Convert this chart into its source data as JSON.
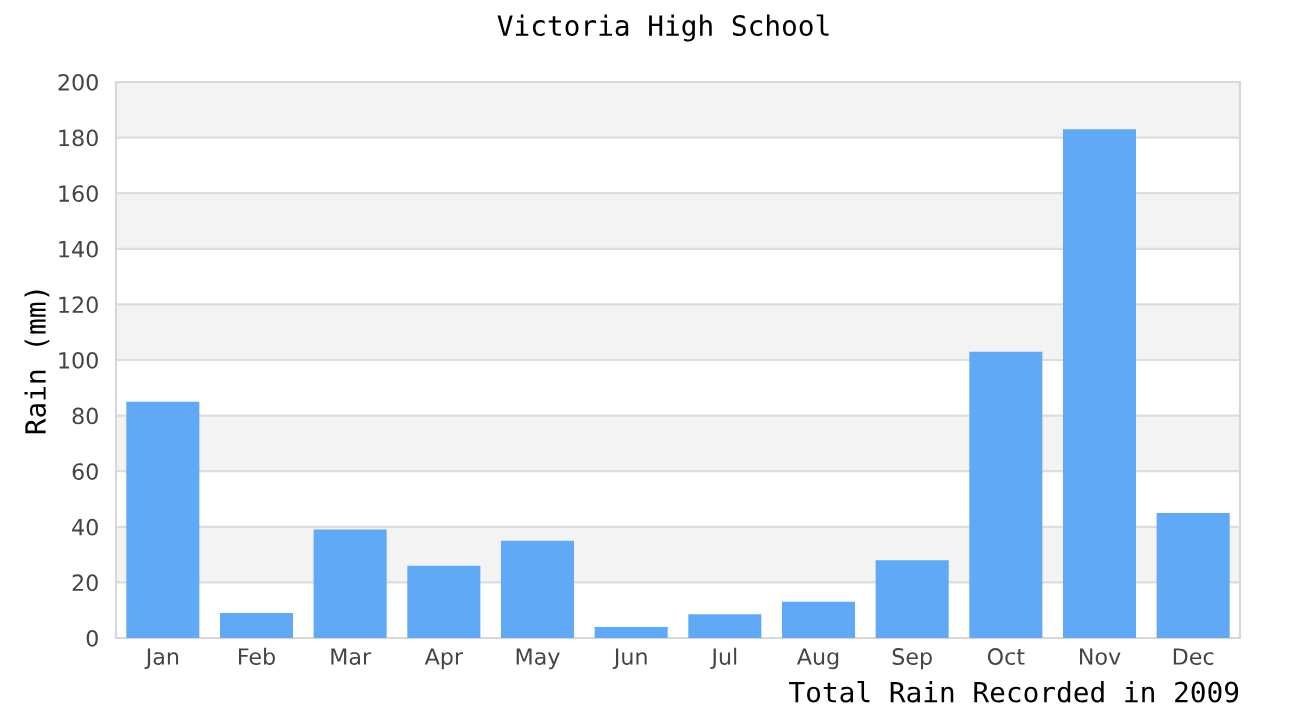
{
  "chart_data": {
    "type": "bar",
    "title": "Victoria High School",
    "xlabel": "Total Rain Recorded in 2009",
    "ylabel": "Rain (mm)",
    "categories": [
      "Jan",
      "Feb",
      "Mar",
      "Apr",
      "May",
      "Jun",
      "Jul",
      "Aug",
      "Sep",
      "Oct",
      "Nov",
      "Dec"
    ],
    "values": [
      85,
      9,
      39,
      26,
      35,
      4,
      8.5,
      13,
      28,
      103,
      183,
      45
    ],
    "color": "#60a9f6",
    "ylim": [
      0,
      200
    ],
    "yticks": [
      0,
      20,
      40,
      60,
      80,
      100,
      120,
      140,
      160,
      180,
      200
    ],
    "grid": "y"
  }
}
